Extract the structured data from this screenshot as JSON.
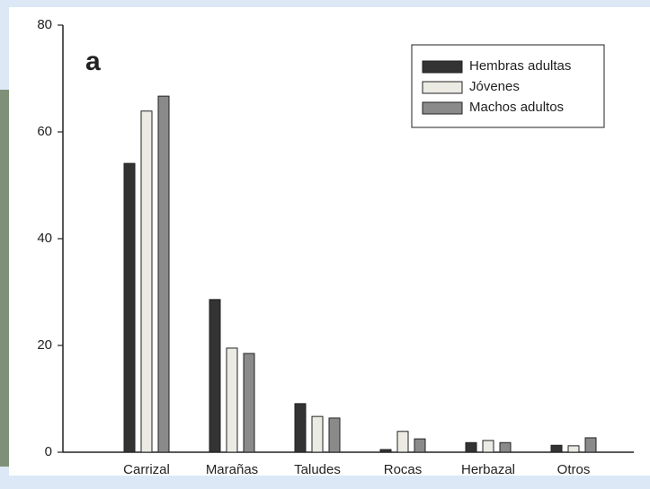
{
  "chart_data": {
    "type": "bar",
    "panel_label": "a",
    "categories": [
      "Carrizal",
      "Marañas",
      "Taludes",
      "Rocas",
      "Herbazal",
      "Otros"
    ],
    "series": [
      {
        "name": "Hembras adultas",
        "color": "#333333",
        "values": [
          54.1,
          28.6,
          9.1,
          0.5,
          1.8,
          1.3
        ]
      },
      {
        "name": "Jóvenes",
        "color": "#ebebe4",
        "values": [
          63.9,
          19.5,
          6.7,
          3.9,
          2.2,
          1.2
        ]
      },
      {
        "name": "Machos adultos",
        "color": "#8a8a8a",
        "values": [
          66.7,
          18.5,
          6.4,
          2.5,
          1.8,
          2.7
        ]
      }
    ],
    "ylim": [
      0,
      80
    ],
    "yticks": [
      0,
      20,
      40,
      60,
      80
    ],
    "legend": "top right"
  }
}
